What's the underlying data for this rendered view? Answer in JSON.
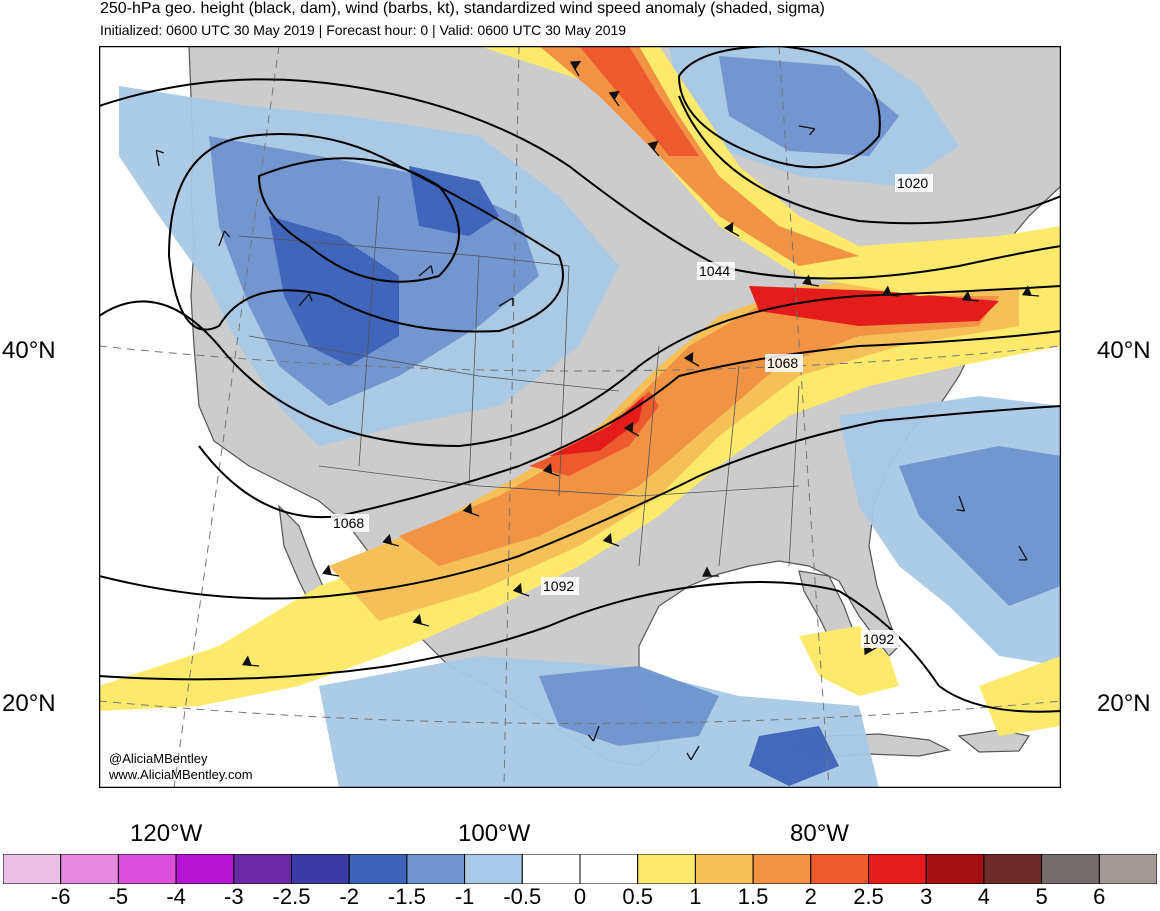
{
  "header": {
    "title": "250-hPa geo. height (black, dam), wind (barbs, kt), standardized wind speed anomaly (shaded, sigma)",
    "subtitle": "Initialized: 0600 UTC 30 May 2019 | Forecast hour: 0 | Valid: 0600 UTC 30 May 2019"
  },
  "axes": {
    "lat_labels": [
      "40°N",
      "20°N"
    ],
    "lon_labels": [
      "120°W",
      "100°W",
      "80°W"
    ]
  },
  "contour_labels": [
    "1020",
    "1044",
    "1068",
    "1068",
    "1092",
    "1092"
  ],
  "credit": {
    "handle": "@AliciaMBentley",
    "website": "www.AliciaMBentley.com"
  },
  "colorbar": {
    "ticks": [
      "-6",
      "-5",
      "-4",
      "-3",
      "-2.5",
      "-2",
      "-1.5",
      "-1",
      "-0.5",
      "0",
      "0.5",
      "1",
      "1.5",
      "2",
      "2.5",
      "3",
      "4",
      "5",
      "6"
    ],
    "colors": [
      "#ebbfe6",
      "#e58ae0",
      "#dc4fdb",
      "#b514d2",
      "#6a2aa6",
      "#3b3ba3",
      "#3c63b7",
      "#6e93cf",
      "#a8c8e6",
      "#ffffff",
      "#ffffff",
      "#fde96b",
      "#f5c058",
      "#f29243",
      "#ec5a2d",
      "#e41c1c",
      "#a40f0f",
      "#6e2b29",
      "#756d6b",
      "#a39a98"
    ]
  },
  "colors": {
    "land": "#cccccc",
    "ocean": "#ffffff",
    "contour": "#000000",
    "border": "#555555"
  }
}
